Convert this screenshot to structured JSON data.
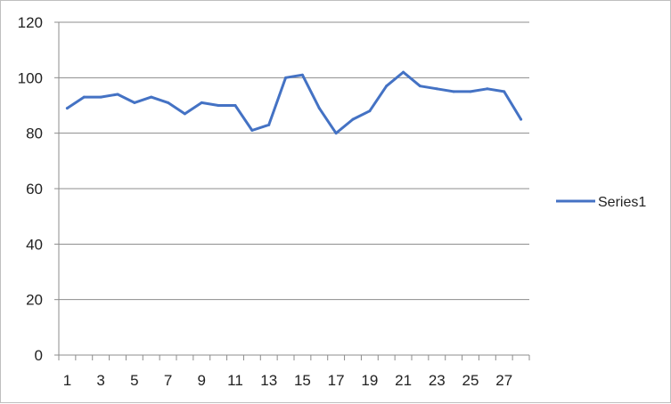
{
  "chart_data": {
    "type": "line",
    "x": [
      1,
      2,
      3,
      4,
      5,
      6,
      7,
      8,
      9,
      10,
      11,
      12,
      13,
      14,
      15,
      16,
      17,
      18,
      19,
      20,
      21,
      22,
      23,
      24,
      25,
      26,
      27,
      28
    ],
    "x_tick_labels": [
      "1",
      "3",
      "5",
      "7",
      "9",
      "11",
      "13",
      "15",
      "17",
      "19",
      "21",
      "23",
      "25",
      "27"
    ],
    "series": [
      {
        "name": "Series1",
        "color": "#4472C4",
        "values": [
          89,
          93,
          93,
          94,
          91,
          93,
          91,
          87,
          91,
          90,
          90,
          81,
          83,
          100,
          101,
          89,
          80,
          85,
          88,
          97,
          102,
          97,
          96,
          95,
          95,
          96,
          95,
          85
        ]
      }
    ],
    "ylim": [
      0,
      120
    ],
    "y_ticks": [
      0,
      20,
      40,
      60,
      80,
      100,
      120
    ],
    "grid": "horizontal",
    "legend_position": "right",
    "title": "",
    "xlabel": "",
    "ylabel": ""
  }
}
